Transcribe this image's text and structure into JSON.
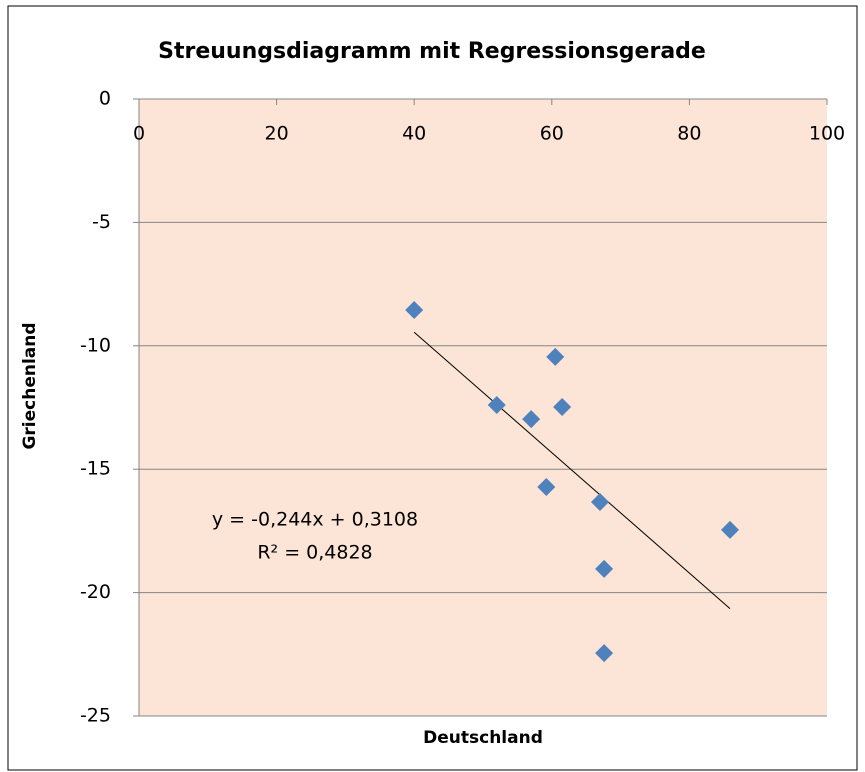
{
  "chart_data": {
    "type": "scatter",
    "title": "Streuungsdiagramm mit Regressionsgerade",
    "x_label": "Deutschland",
    "y_label": "Griechenland",
    "series": [
      {
        "name": "Griechenland",
        "color": "#4f81bd",
        "x": [
          40,
          60.5,
          52,
          57,
          61.5,
          59.2,
          67,
          85.9,
          67.6,
          67.6
        ],
        "values": [
          -8.55,
          -10.45,
          -12.4,
          -12.97,
          -12.48,
          -15.72,
          -16.33,
          -17.46,
          -19.04,
          -22.45
        ]
      }
    ],
    "trendline": {
      "slope": -0.244,
      "intercept": 0.3108,
      "color": "#000000",
      "equation": "y = -0,244x + 0,3108",
      "r2": "R² = 0,4828"
    },
    "xlim": [
      0,
      100
    ],
    "xticks": [
      0,
      20,
      40,
      60,
      80,
      100
    ],
    "ylim": [
      -25,
      0
    ],
    "yticks": [
      0,
      -5,
      -10,
      -15,
      -20,
      -25
    ],
    "grid": true,
    "plot_background": "#fce4d6"
  }
}
